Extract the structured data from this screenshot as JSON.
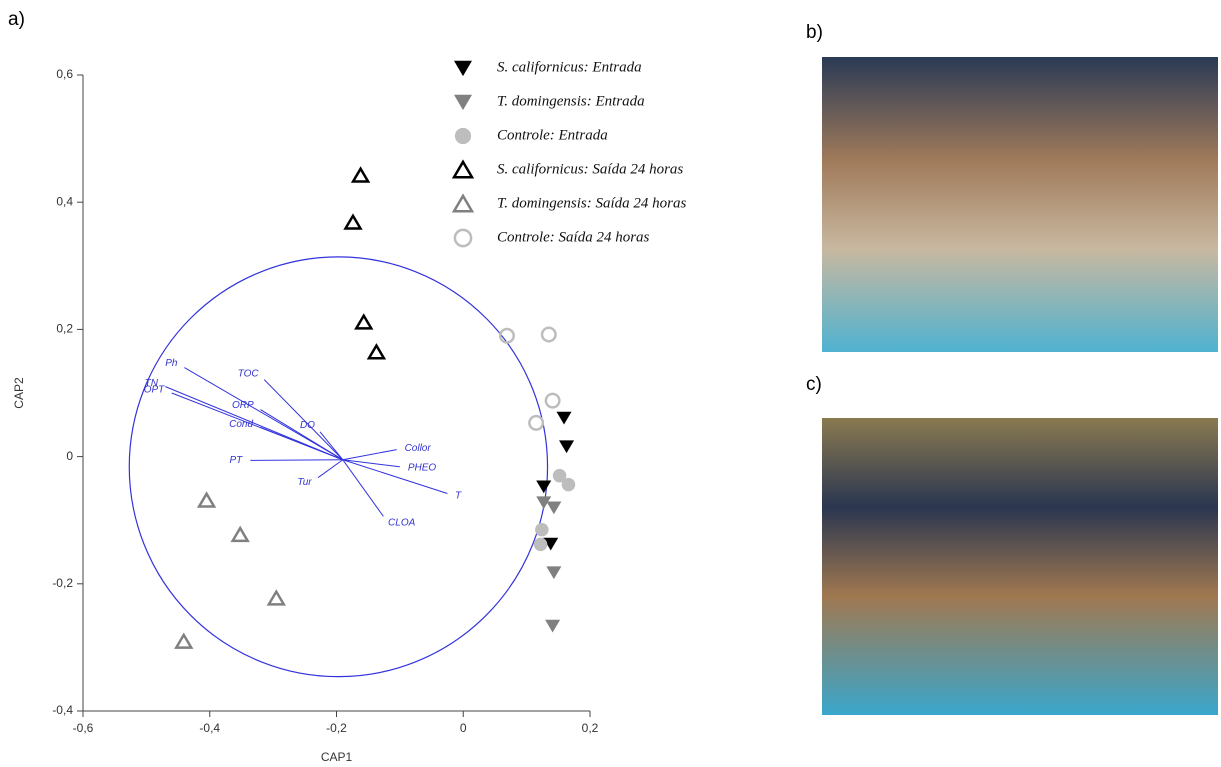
{
  "panels": {
    "a": "a)",
    "b": "b)",
    "c": "c)"
  },
  "chart_data": {
    "type": "scatter",
    "x_label": "CAP1",
    "y_label": "CAP2",
    "xlim": [
      -0.6,
      0.2
    ],
    "ylim": [
      -0.4,
      0.6
    ],
    "xticks": [
      {
        "value": -0.6,
        "label": "-0,6"
      },
      {
        "value": -0.4,
        "label": "-0,4"
      },
      {
        "value": -0.2,
        "label": "-0,2"
      },
      0,
      {
        "value": 0.2,
        "label": "0,2"
      }
    ],
    "yticks": [
      {
        "value": -0.4,
        "label": "-0,4"
      },
      {
        "value": -0.2,
        "label": "-0,2"
      },
      0,
      {
        "value": 0.2,
        "label": "0,2"
      },
      {
        "value": 0.4,
        "label": "0,4"
      },
      {
        "value": 0.6,
        "label": "0,6"
      }
    ],
    "series": [
      {
        "name": "S. californicus: Entrada",
        "color": "#000000",
        "marker": "triangle-down",
        "filled": true,
        "x": [
          0.159,
          0.163,
          0.127,
          0.138
        ],
        "y": [
          0.061,
          0.016,
          -0.047,
          -0.137
        ]
      },
      {
        "name": "T. domingensis: Entrada",
        "color": "#808080",
        "marker": "triangle-down",
        "filled": true,
        "x": [
          0.127,
          0.143,
          0.143,
          0.141
        ],
        "y": [
          -0.072,
          -0.08,
          -0.182,
          -0.266
        ]
      },
      {
        "name": "Controle: Entrada",
        "color": "#bdbdbd",
        "marker": "circle",
        "filled": true,
        "x": [
          0.152,
          0.166,
          0.124,
          0.122
        ],
        "y": [
          -0.03,
          -0.044,
          -0.115,
          -0.138
        ]
      },
      {
        "name": "S. californicus: Saída 24 horas",
        "color": "#000000",
        "marker": "triangle-up",
        "filled": false,
        "x": [
          -0.162,
          -0.174,
          -0.157,
          -0.137
        ],
        "y": [
          0.442,
          0.368,
          0.211,
          0.164
        ]
      },
      {
        "name": "T. domingensis: Saída 24 horas",
        "color": "#808080",
        "marker": "triangle-up",
        "filled": false,
        "x": [
          -0.405,
          -0.352,
          -0.295,
          -0.441
        ],
        "y": [
          -0.069,
          -0.123,
          -0.223,
          -0.291
        ]
      },
      {
        "name": "Controle: Saída 24 horas",
        "color": "#bdbdbd",
        "marker": "circle",
        "filled": false,
        "x": [
          0.069,
          0.135,
          0.141,
          0.115
        ],
        "y": [
          0.19,
          0.192,
          0.088,
          0.053
        ]
      }
    ],
    "circle": {
      "center": [
        -0.197,
        -0.016
      ],
      "radius": 0.33,
      "color": "#3333dd"
    },
    "vector_origin": [
      -0.19,
      -0.005
    ],
    "vectors": [
      {
        "name": "Ph",
        "x": -0.44,
        "y": 0.14
      },
      {
        "name": "TN",
        "x": -0.47,
        "y": 0.11
      },
      {
        "name": "OPT",
        "x": -0.46,
        "y": 0.1
      },
      {
        "name": "TOC",
        "x": -0.314,
        "y": 0.121
      },
      {
        "name": "ORP",
        "x": -0.32,
        "y": 0.074
      },
      {
        "name": "Cond",
        "x": -0.32,
        "y": 0.046
      },
      {
        "name": "DO",
        "x": -0.226,
        "y": 0.039
      },
      {
        "name": "PT",
        "x": -0.336,
        "y": -0.006
      },
      {
        "name": "Collor",
        "x": -0.105,
        "y": 0.011
      },
      {
        "name": "PHEO",
        "x": -0.1,
        "y": -0.016
      },
      {
        "name": "T",
        "x": -0.025,
        "y": -0.058
      },
      {
        "name": "Tur",
        "x": -0.229,
        "y": -0.033
      },
      {
        "name": "CLOA",
        "x": -0.126,
        "y": -0.094
      }
    ]
  }
}
